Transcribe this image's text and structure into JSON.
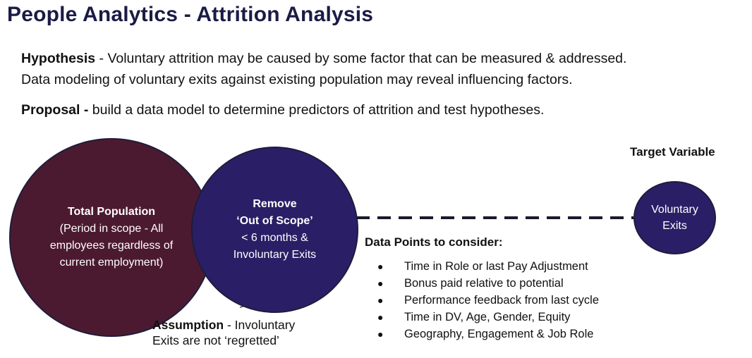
{
  "title": "People Analytics - Attrition Analysis",
  "hypothesis": {
    "label": "Hypothesis",
    "line1": " - Voluntary attrition may be caused by some factor that can be measured & addressed.",
    "line2": "Data modeling of voluntary exits against existing population may reveal influencing factors."
  },
  "proposal": {
    "label": "Proposal -",
    "text": " build a data model to determine predictors of attrition and test hypotheses."
  },
  "colors": {
    "title": "#1b1b46",
    "total_population": "#4c1a30",
    "remove_circle": "#2a1f66",
    "target_circle": "#2a1f66"
  },
  "total_population": {
    "heading": "Total Population",
    "lines": [
      "(Period in scope - All",
      "employees regardless of",
      "current employment)"
    ]
  },
  "remove": {
    "heading1": "Remove",
    "heading2": "‘Out of Scope’",
    "lines": [
      "< 6 months &",
      "Involuntary Exits"
    ]
  },
  "target_variable": {
    "label": "Target Variable",
    "circle_line1": "Voluntary",
    "circle_line2": "Exits"
  },
  "data_points": {
    "title": "Data Points to consider:",
    "bullet": "●",
    "items": [
      "Time in Role or last Pay Adjustment",
      "Bonus paid relative to potential",
      "Performance feedback from last cycle",
      "Time in DV, Age, Gender, Equity",
      "Geography, Engagement & Job Role"
    ]
  },
  "assumption": {
    "label": "Assumption",
    "text1": " - Involuntary",
    "text2": "Exits are not ‘regretted’"
  }
}
